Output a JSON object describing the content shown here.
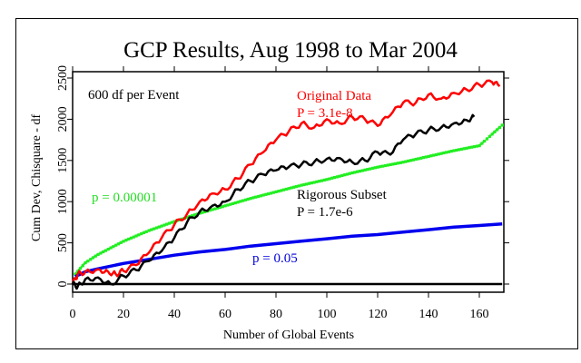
{
  "chart_data": {
    "type": "line",
    "title": "GCP Results, Aug 1998 to Mar 2004",
    "xlabel": "Number of Global Events",
    "ylabel": "Cum Dev, Chisquare - df",
    "xlim": [
      0,
      169
    ],
    "ylim": [
      -100,
      2600
    ],
    "xticks": [
      0,
      20,
      40,
      60,
      80,
      100,
      120,
      140,
      160
    ],
    "xtick_labels": [
      "0",
      "20",
      "40",
      "60",
      "80",
      "100",
      "120",
      "140",
      "160"
    ],
    "yticks": [
      0,
      500,
      1000,
      1500,
      2000,
      2500
    ],
    "ytick_labels": [
      "0",
      "500",
      "1000",
      "1500",
      "2000",
      "2500"
    ],
    "grid": false,
    "annotations": [
      {
        "id": "df-note",
        "text": "600 df per Event",
        "color": "#000000"
      },
      {
        "id": "original-label",
        "text": "Original Data",
        "color": "#ff0000"
      },
      {
        "id": "original-p",
        "text": "P = 3.1e-8",
        "color": "#ff0000"
      },
      {
        "id": "rigorous-label",
        "text": "Rigorous Subset",
        "color": "#000000"
      },
      {
        "id": "rigorous-p",
        "text": "P = 1.7e-6",
        "color": "#000000"
      },
      {
        "id": "green-label",
        "text": "p = 0.00001",
        "color": "#22dd22"
      },
      {
        "id": "blue-label",
        "text": "p = 0.05",
        "color": "#0000dd"
      }
    ],
    "series": [
      {
        "name": "Original Data",
        "color": "#ff0000",
        "style": "solid",
        "x": [
          0,
          2,
          5,
          10,
          14,
          17,
          20,
          25,
          30,
          35,
          40,
          45,
          50,
          55,
          60,
          65,
          70,
          75,
          80,
          85,
          90,
          95,
          100,
          105,
          110,
          115,
          120,
          125,
          130,
          135,
          140,
          145,
          150,
          155,
          160,
          165,
          168
        ],
        "y": [
          0,
          120,
          150,
          180,
          150,
          120,
          160,
          230,
          380,
          560,
          720,
          850,
          1000,
          1100,
          1150,
          1280,
          1450,
          1600,
          1750,
          1850,
          1950,
          1900,
          2000,
          1950,
          2030,
          2000,
          1920,
          2050,
          2200,
          2200,
          2300,
          2250,
          2320,
          2360,
          2420,
          2450,
          2400
        ]
      },
      {
        "name": "Rigorous Subset",
        "color": "#000000",
        "style": "solid",
        "x": [
          0,
          2,
          5,
          10,
          15,
          20,
          25,
          30,
          35,
          40,
          45,
          50,
          55,
          60,
          65,
          70,
          75,
          80,
          85,
          90,
          95,
          100,
          105,
          110,
          115,
          120,
          125,
          130,
          135,
          140,
          145,
          150,
          155,
          158
        ],
        "y": [
          0,
          -30,
          60,
          80,
          0,
          100,
          170,
          280,
          400,
          560,
          750,
          880,
          950,
          1000,
          1150,
          1250,
          1330,
          1380,
          1420,
          1450,
          1480,
          1520,
          1530,
          1480,
          1500,
          1600,
          1570,
          1750,
          1820,
          1870,
          1900,
          1950,
          1990,
          2030
        ]
      },
      {
        "name": "p = 0.00001",
        "color": "#22ee22",
        "style": "dotted",
        "x": [
          1,
          5,
          10,
          20,
          30,
          40,
          50,
          60,
          70,
          80,
          90,
          100,
          110,
          120,
          130,
          140,
          150,
          160,
          169
        ],
        "y": [
          120,
          260,
          360,
          520,
          650,
          760,
          860,
          950,
          1040,
          1120,
          1200,
          1270,
          1350,
          1420,
          1480,
          1550,
          1620,
          1680,
          1930
        ]
      },
      {
        "name": "p = 0.05",
        "color": "#0000ee",
        "style": "solid",
        "x": [
          1,
          5,
          10,
          20,
          30,
          40,
          50,
          60,
          70,
          80,
          90,
          100,
          110,
          120,
          130,
          140,
          150,
          160,
          169
        ],
        "y": [
          90,
          150,
          185,
          250,
          300,
          350,
          390,
          420,
          460,
          490,
          520,
          550,
          580,
          600,
          630,
          660,
          690,
          710,
          730
        ]
      },
      {
        "name": "zero baseline",
        "color": "#000000",
        "style": "solid",
        "x": [
          0,
          169
        ],
        "y": [
          0,
          0
        ]
      }
    ]
  }
}
